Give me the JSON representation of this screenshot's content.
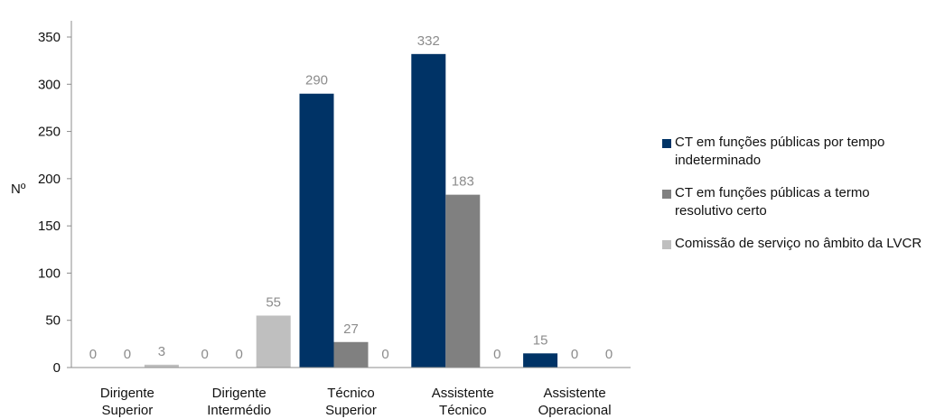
{
  "chart_data": {
    "type": "bar",
    "ylabel": "Nº",
    "xlabel": "",
    "ylim": [
      0,
      350
    ],
    "yticks": [
      0,
      50,
      100,
      150,
      200,
      250,
      300,
      350
    ],
    "grid": false,
    "legend_position": "right",
    "categories": [
      [
        "Dirigente",
        "Superior"
      ],
      [
        "Dirigente",
        "Intermédio"
      ],
      [
        "Técnico",
        "Superior"
      ],
      [
        "Assistente",
        "Técnico"
      ],
      [
        "Assistente",
        "Operacional"
      ]
    ],
    "series": [
      {
        "name": "CT em funções públicas por tempo indeterminado",
        "color": "#003366",
        "values": [
          0,
          0,
          290,
          332,
          15
        ]
      },
      {
        "name": "CT em funções públicas a termo resolutivo certo",
        "color": "#808080",
        "values": [
          0,
          0,
          27,
          183,
          0
        ]
      },
      {
        "name": "Comissão de serviço no âmbito da LVCR",
        "color": "#bfbfbf",
        "values": [
          3,
          55,
          0,
          0,
          0
        ]
      }
    ]
  }
}
